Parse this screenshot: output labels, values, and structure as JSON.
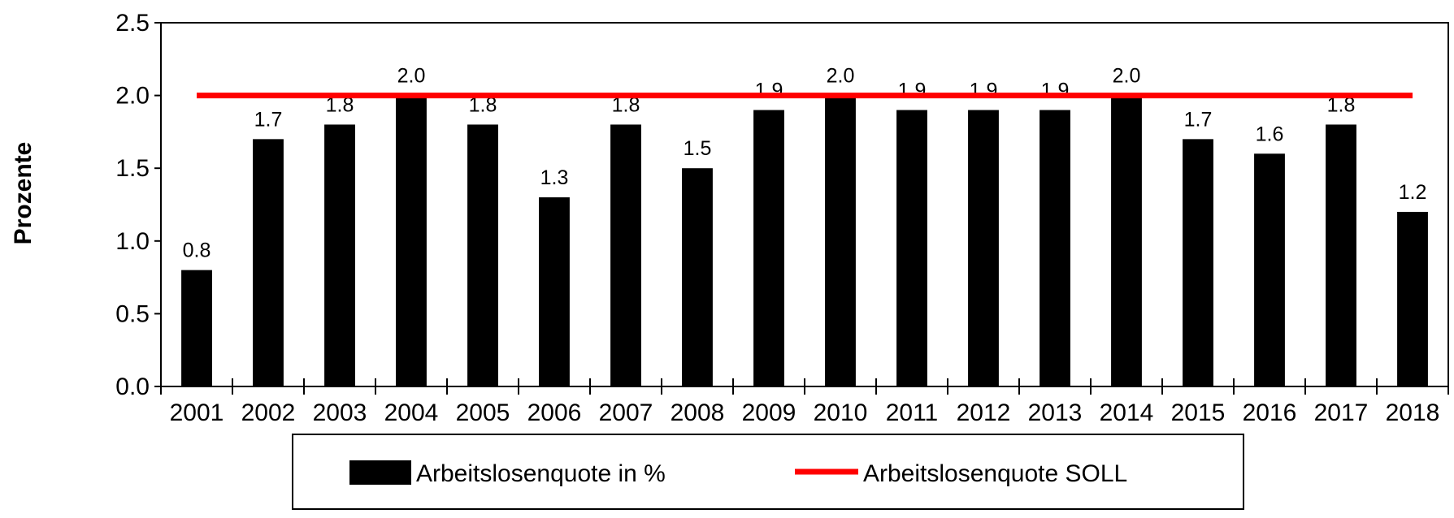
{
  "chart_data": {
    "type": "bar",
    "ylabel": "Prozente",
    "ylim": [
      0,
      2.5
    ],
    "yticks": [
      0.0,
      0.5,
      1.0,
      1.5,
      2.0,
      2.5
    ],
    "categories": [
      "2001",
      "2002",
      "2003",
      "2004",
      "2005",
      "2006",
      "2007",
      "2008",
      "2009",
      "2010",
      "2011",
      "2012",
      "2013",
      "2014",
      "2015",
      "2016",
      "2017",
      "2018"
    ],
    "series": [
      {
        "name": "Arbeitslosenquote in %",
        "type": "bar",
        "color": "#000000",
        "values": [
          0.8,
          1.7,
          1.8,
          2.0,
          1.8,
          1.3,
          1.8,
          1.5,
          1.9,
          2.0,
          1.9,
          1.9,
          1.9,
          2.0,
          1.7,
          1.6,
          1.8,
          1.2
        ]
      },
      {
        "name": "Arbeitslosenquote SOLL",
        "type": "line",
        "color": "#ff0000",
        "values": [
          2.0,
          2.0,
          2.0,
          2.0,
          2.0,
          2.0,
          2.0,
          2.0,
          2.0,
          2.0,
          2.0,
          2.0,
          2.0,
          2.0,
          2.0,
          2.0,
          2.0,
          2.0
        ]
      }
    ],
    "legend_position": "bottom",
    "grid": false,
    "data_labels": true
  }
}
